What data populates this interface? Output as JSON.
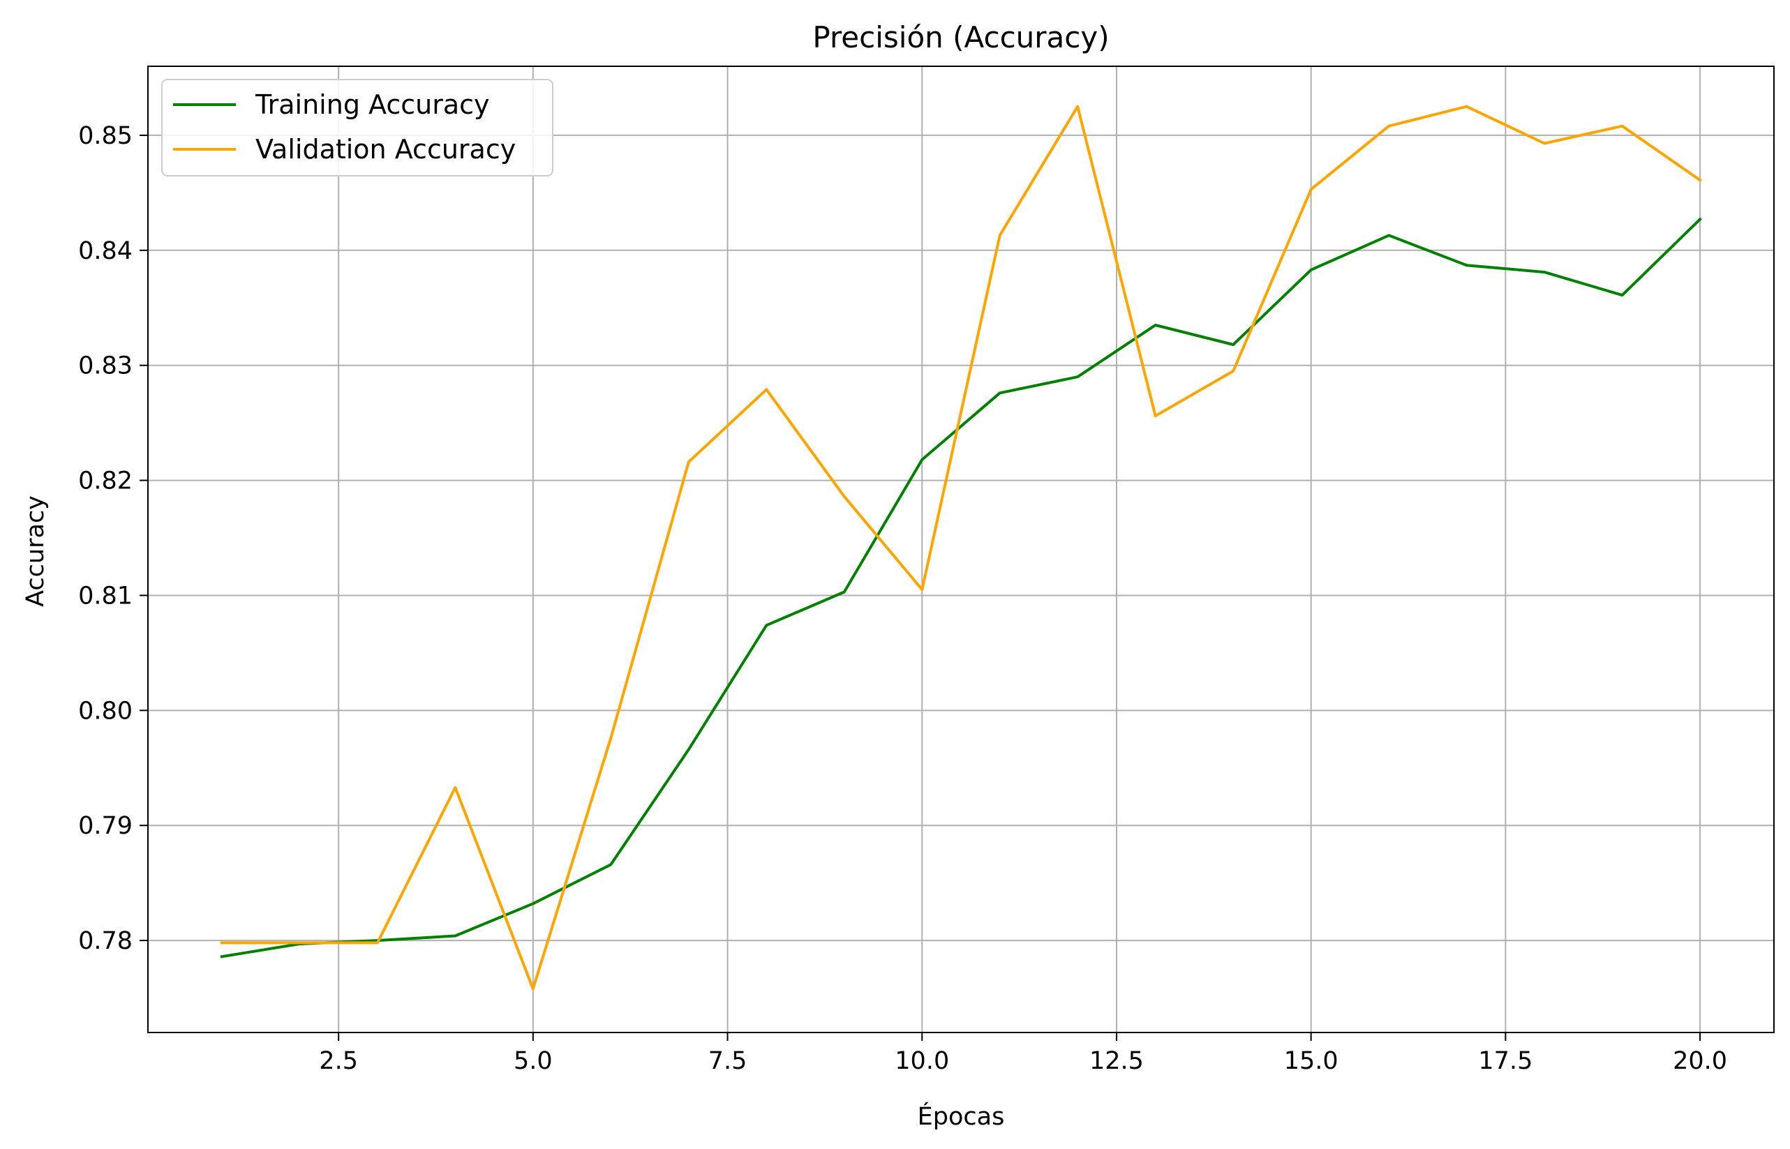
{
  "chart_data": {
    "type": "line",
    "title": "Precisión (Accuracy)",
    "xlabel": "Épocas",
    "ylabel": "Accuracy",
    "xlim": [
      0.05,
      20.95
    ],
    "ylim": [
      0.772,
      0.856
    ],
    "x_ticks": [
      2.5,
      5.0,
      7.5,
      10.0,
      12.5,
      15.0,
      17.5,
      20.0
    ],
    "x_tick_labels": [
      "2.5",
      "5.0",
      "7.5",
      "10.0",
      "12.5",
      "15.0",
      "17.5",
      "20.0"
    ],
    "y_ticks": [
      0.78,
      0.79,
      0.8,
      0.81,
      0.82,
      0.83,
      0.84,
      0.85
    ],
    "y_tick_labels": [
      "0.78",
      "0.79",
      "0.80",
      "0.81",
      "0.82",
      "0.83",
      "0.84",
      "0.85"
    ],
    "grid": true,
    "legend_position": "top-left",
    "x": [
      1,
      2,
      3,
      4,
      5,
      6,
      7,
      8,
      9,
      10,
      11,
      12,
      13,
      14,
      15,
      16,
      17,
      18,
      19,
      20
    ],
    "series": [
      {
        "name": "Training Accuracy",
        "color": "#008000",
        "values": [
          0.7786,
          0.7797,
          0.78,
          0.7804,
          0.7832,
          0.7866,
          0.7966,
          0.8074,
          0.8103,
          0.8218,
          0.8276,
          0.829,
          0.8335,
          0.8318,
          0.8383,
          0.8413,
          0.8387,
          0.8381,
          0.8361,
          0.8427
        ]
      },
      {
        "name": "Validation Accuracy",
        "color": "#FFA500",
        "values": [
          0.7798,
          0.7798,
          0.7798,
          0.7933,
          0.7758,
          0.7976,
          0.8216,
          0.8279,
          0.8186,
          0.8105,
          0.8413,
          0.8525,
          0.8256,
          0.8295,
          0.8453,
          0.8508,
          0.8525,
          0.8493,
          0.8508,
          0.8461
        ]
      }
    ]
  }
}
